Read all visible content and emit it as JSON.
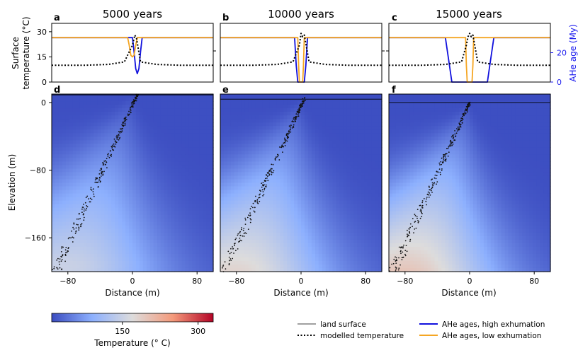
{
  "chart_data": [
    {
      "type": "line",
      "panel": "a",
      "title": "5000 years",
      "ylabel": "Surface\ntemperature (°C)",
      "yticks": [
        0,
        15,
        30
      ],
      "ylim": [
        0,
        35
      ],
      "xlim": [
        -100,
        100
      ],
      "secondary_ylim": [
        0,
        40
      ],
      "series": [
        {
          "name": "modelled temperature",
          "x": [
            -100,
            -60,
            -30,
            -10,
            0,
            3,
            5,
            10,
            30,
            60,
            100
          ],
          "values": [
            10,
            10,
            10.5,
            12,
            22,
            28,
            26,
            12,
            10.5,
            10,
            10
          ]
        },
        {
          "name": "AHe ages, low exhumation",
          "x": [
            -100,
            -6,
            -4,
            -2,
            0,
            2,
            4,
            6,
            100
          ],
          "values": [
            26.5,
            26.5,
            22,
            16,
            15,
            16,
            22,
            26.5,
            26.5
          ]
        },
        {
          "name": "AHe ages, high exhumation",
          "x": [
            -100,
            0,
            2,
            4,
            6,
            8,
            10,
            12,
            100
          ],
          "values": [
            26.5,
            26.5,
            18,
            8,
            5,
            8,
            18,
            26.5,
            26.5
          ]
        }
      ]
    },
    {
      "type": "line",
      "panel": "b",
      "title": "10000 years",
      "ylim": [
        0,
        35
      ],
      "xlim": [
        -100,
        100
      ],
      "series": [
        {
          "name": "modelled temperature",
          "x": [
            -100,
            -60,
            -30,
            -10,
            -2,
            0,
            2,
            4,
            10,
            30,
            60,
            100
          ],
          "values": [
            10,
            10,
            10.5,
            12,
            22,
            29,
            27,
            28,
            12,
            10.5,
            10,
            10
          ]
        },
        {
          "name": "AHe ages, low exhumation",
          "x": [
            -100,
            -4,
            -3,
            -2,
            0,
            2,
            3,
            4,
            100
          ],
          "values": [
            26.5,
            26.5,
            10,
            0,
            0,
            0,
            10,
            26.5,
            26.5
          ]
        },
        {
          "name": "AHe ages, high exhumation",
          "x": [
            -100,
            -8,
            -6,
            -4,
            0,
            4,
            6,
            8,
            100
          ],
          "values": [
            26.5,
            26.5,
            10,
            0,
            0,
            0,
            10,
            26.5,
            26.5
          ]
        }
      ]
    },
    {
      "type": "line",
      "panel": "c",
      "title": "15000 years",
      "ylabel": "AHe age (My)",
      "secondary_yticks": [
        0,
        20
      ],
      "secondary_ylim": [
        0,
        40
      ],
      "ylim": [
        0,
        35
      ],
      "xlim": [
        -100,
        100
      ],
      "series": [
        {
          "name": "modelled temperature",
          "x": [
            -100,
            -60,
            -30,
            -10,
            -4,
            -2,
            0,
            2,
            4,
            10,
            30,
            60,
            100
          ],
          "values": [
            10,
            10,
            10.5,
            12,
            22,
            27,
            29,
            27,
            28,
            12,
            10.5,
            10,
            10
          ]
        },
        {
          "name": "AHe ages, low exhumation",
          "x": [
            -100,
            -5,
            -4,
            -3,
            0,
            3,
            4,
            5,
            100
          ],
          "values": [
            26.5,
            26.5,
            10,
            0,
            0,
            0,
            10,
            26.5,
            26.5
          ]
        },
        {
          "name": "AHe ages, high exhumation",
          "x": [
            -100,
            -30,
            -25,
            -22,
            0,
            22,
            25,
            30,
            100
          ],
          "values": [
            26.5,
            26.5,
            10,
            0,
            0,
            0,
            10,
            26.5,
            26.5
          ]
        }
      ]
    },
    {
      "type": "heatmap",
      "panel": "d",
      "xlabel": "Distance (m)",
      "ylabel": "Elevation (m)",
      "xticks": [
        -80,
        0,
        80
      ],
      "yticks": [
        0,
        -80,
        -160
      ],
      "xlim": [
        -100,
        100
      ],
      "ylim": [
        -200,
        10
      ],
      "land_surface_y": 9,
      "max_temperature": 150,
      "tracks": [
        [
          -95,
          -200
        ],
        [
          6,
          9
        ]
      ]
    },
    {
      "type": "heatmap",
      "panel": "e",
      "xlabel": "Distance (m)",
      "xticks": [
        -80,
        0,
        80
      ],
      "xlim": [
        -100,
        100
      ],
      "ylim": [
        -200,
        10
      ],
      "land_surface_y": 4,
      "max_temperature": 180,
      "tracks": [
        [
          -95,
          -200
        ],
        [
          4,
          4
        ]
      ]
    },
    {
      "type": "heatmap",
      "panel": "f",
      "xlabel": "Distance (m)",
      "xticks": [
        -80,
        0,
        80
      ],
      "xlim": [
        -100,
        100
      ],
      "ylim": [
        -200,
        10
      ],
      "land_surface_y": 0,
      "max_temperature": 200,
      "tracks": [
        [
          -95,
          -200
        ],
        [
          0,
          0
        ]
      ]
    }
  ],
  "colorbar": {
    "label": "Temperature (° C)",
    "ticks": [
      150,
      300
    ],
    "range": [
      10,
      330
    ]
  },
  "legend": {
    "land_surface": "land surface",
    "modelled_temperature": "modelled temperature",
    "high": "AHe ages, high exhumation",
    "low": "AHe ages, low exhumation"
  },
  "colors": {
    "high": "#1010dd",
    "low": "#f5a623",
    "temp": "#000000",
    "axis2": "#1a1aee"
  }
}
